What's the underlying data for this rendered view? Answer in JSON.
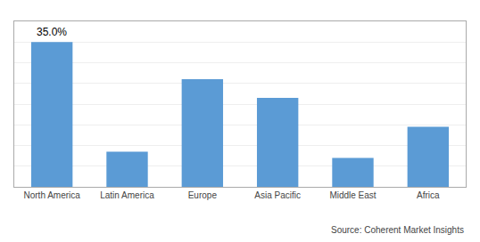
{
  "chart_data": {
    "type": "bar",
    "categories": [
      "North America",
      "Latin America",
      "Europe",
      "Asia Pacific",
      "Middle East",
      "Africa"
    ],
    "values": [
      35.0,
      8.5,
      26.0,
      21.5,
      7.0,
      14.5
    ],
    "color": "#5B9BD5",
    "ylim": [
      0,
      40
    ],
    "yticks": [
      0,
      5,
      10,
      15,
      20,
      25,
      30,
      35,
      40
    ],
    "grid": true,
    "tick_labels": "x",
    "annotations": [
      {
        "text": "35.0%",
        "x": "North America",
        "y": 35.0
      }
    ],
    "source": "Source: Coherent Market Insights"
  }
}
